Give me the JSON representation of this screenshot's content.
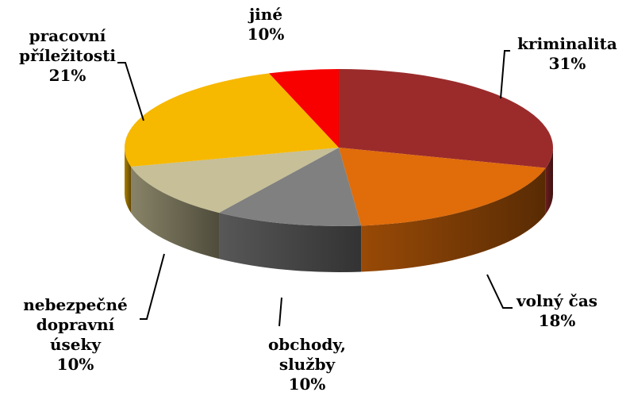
{
  "chart_data": {
    "type": "pie",
    "slices": [
      {
        "name": "kriminalita",
        "lines": [
          "kriminalita"
        ],
        "value": 31,
        "label": "31%",
        "color": "#9B2B2B"
      },
      {
        "name": "volný čas",
        "lines": [
          "volný čas"
        ],
        "value": 18,
        "label": "18%",
        "color": "#E06C0A"
      },
      {
        "name": "obchody, služby",
        "lines": [
          "obchody,",
          "služby"
        ],
        "value": 10,
        "label": "10%",
        "color": "#808080"
      },
      {
        "name": "nebezpečné dopravní úseky",
        "lines": [
          "nebezpečné",
          "dopravní",
          "úseky"
        ],
        "value": 10,
        "label": "10%",
        "color": "#C6BF97"
      },
      {
        "name": "pracovní příležitosti",
        "lines": [
          "pracovní",
          "příležitosti"
        ],
        "value": 21,
        "label": "21%",
        "color": "#F7B800"
      },
      {
        "name": "jiné",
        "lines": [
          "jiné"
        ],
        "value": 10,
        "label": "10%",
        "color": "#F80000"
      }
    ],
    "title": "",
    "legend": "none",
    "style": "3d-pie"
  }
}
